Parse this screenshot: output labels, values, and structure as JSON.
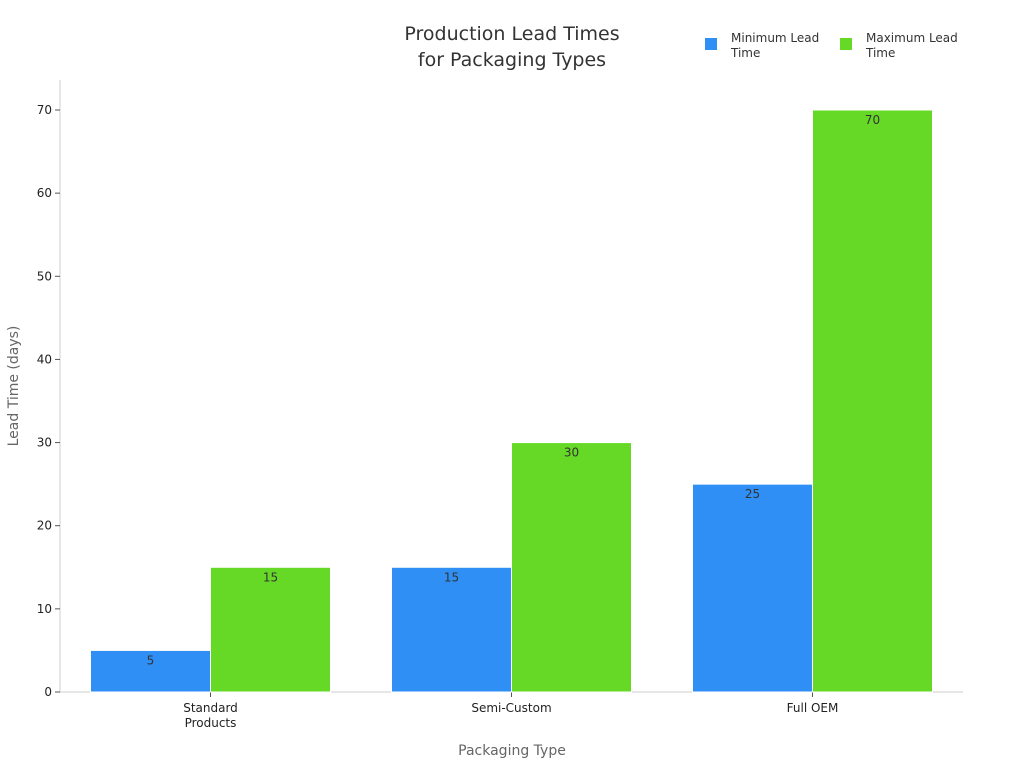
{
  "chart_data": {
    "type": "bar",
    "title": [
      "Production Lead Times",
      "for Packaging Types"
    ],
    "xlabel": "Packaging Type",
    "ylabel": "Lead Time (days)",
    "categories": [
      [
        "Standard",
        "Products"
      ],
      [
        "Semi-Custom"
      ],
      [
        "Full OEM"
      ]
    ],
    "series": [
      {
        "name": [
          "Minimum Lead",
          "Time"
        ],
        "values": [
          5,
          15,
          25
        ],
        "color": "#2F8FF5"
      },
      {
        "name": [
          "Maximum Lead",
          "Time"
        ],
        "values": [
          15,
          30,
          70
        ],
        "color": "#66D927"
      }
    ],
    "ylim": [
      0,
      70
    ],
    "yticks": [
      0,
      10,
      20,
      30,
      40,
      50,
      60,
      70
    ],
    "legend_position": "top-right",
    "grid": false,
    "axis_color": "#CCCCCC"
  }
}
